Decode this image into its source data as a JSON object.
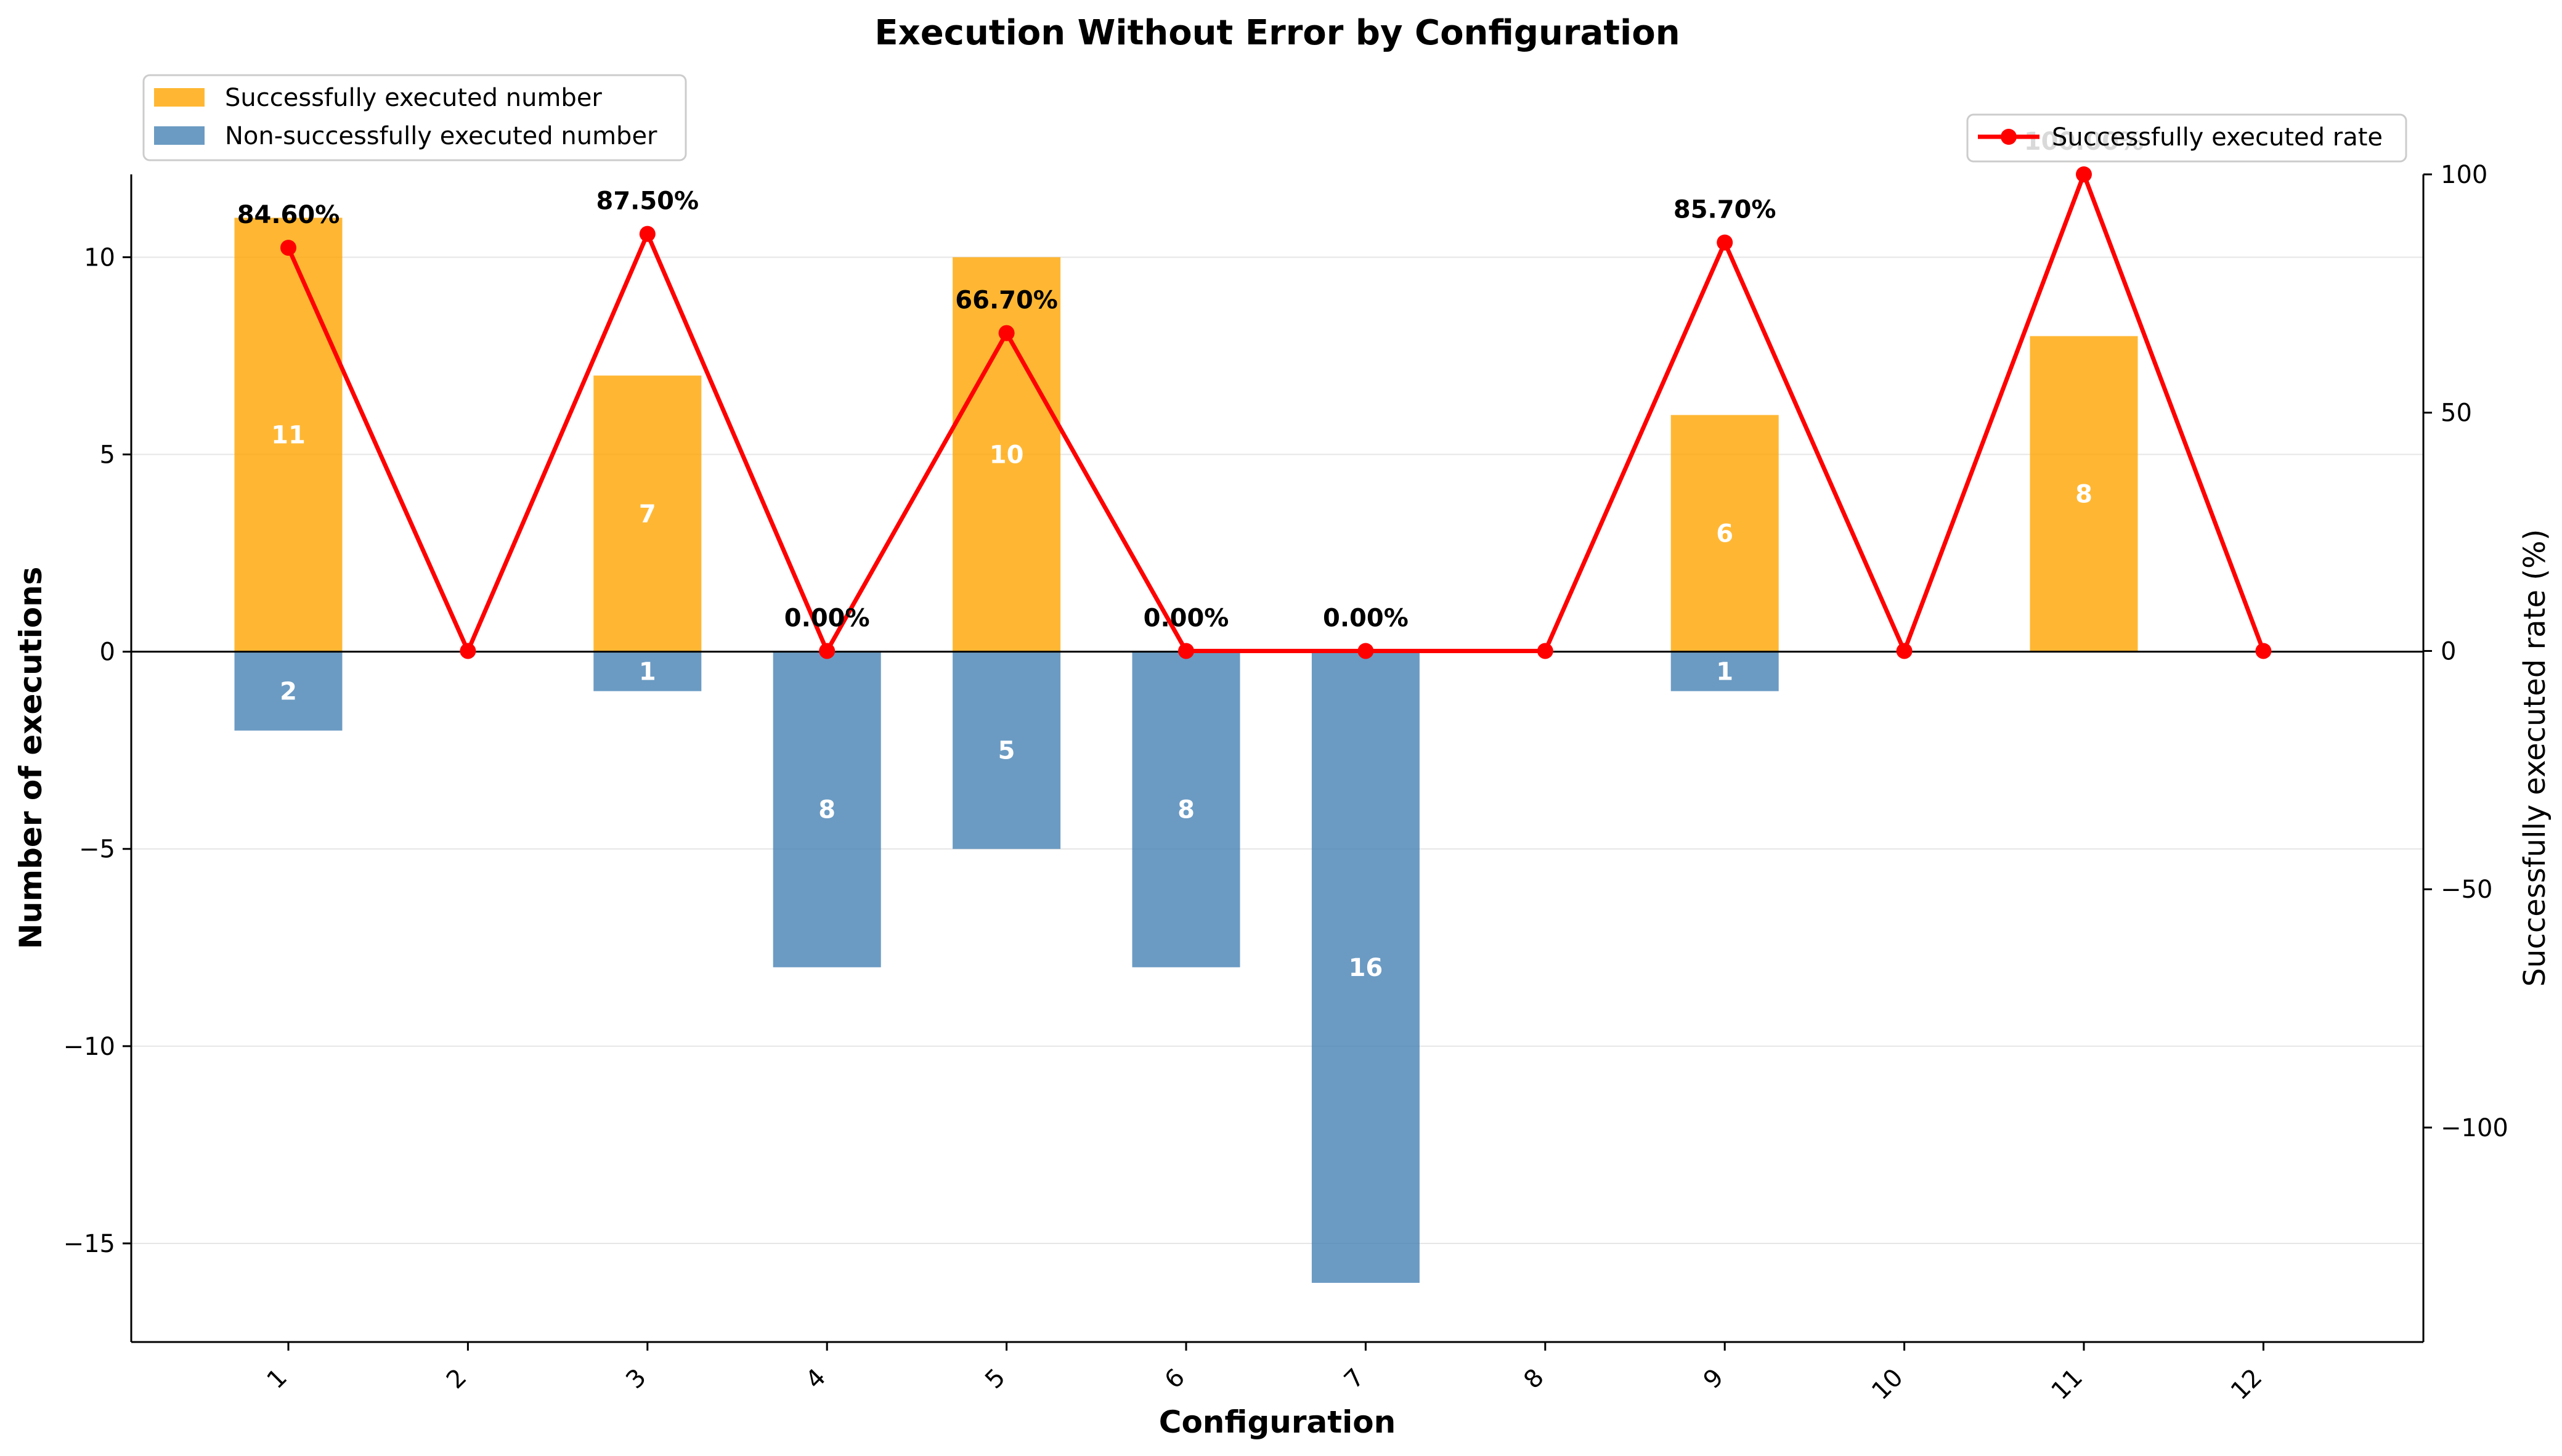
{
  "chart_data": {
    "type": "bar",
    "title": "Execution Without Error by Configuration",
    "xlabel": "Configuration",
    "ylabel": "Number of executions",
    "y2label": "Successfully executed rate (%)",
    "categories": [
      "1",
      "2",
      "3",
      "4",
      "5",
      "6",
      "7",
      "8",
      "9",
      "10",
      "11",
      "12"
    ],
    "series": [
      {
        "name": "Successfully executed number",
        "kind": "bar",
        "color": "#FFA500",
        "values": [
          11,
          0,
          7,
          0,
          10,
          0,
          0,
          0,
          6,
          0,
          8,
          0
        ]
      },
      {
        "name": "Non-successfully executed number",
        "kind": "bar",
        "color": "#4682B4",
        "values": [
          -2,
          0,
          -1,
          -8,
          -5,
          -8,
          -16,
          0,
          -1,
          0,
          0,
          0
        ]
      },
      {
        "name": "Successfully executed rate",
        "kind": "line",
        "axis": "right",
        "color": "#FF0000",
        "values": [
          84.6,
          0,
          87.5,
          0,
          66.7,
          0,
          0,
          0,
          85.7,
          0,
          100,
          0
        ]
      }
    ],
    "success_labels": [
      "11",
      "",
      "7",
      "",
      "10",
      "",
      "",
      "",
      "6",
      "",
      "8",
      ""
    ],
    "fail_labels": [
      "2",
      "",
      "1",
      "8",
      "5",
      "8",
      "16",
      "",
      "1",
      "",
      "",
      ""
    ],
    "rate_labels": [
      "84.60%",
      "",
      "87.50%",
      "0.00%",
      "66.70%",
      "0.00%",
      "0.00%",
      "",
      "85.70%",
      "",
      "100.00%",
      ""
    ],
    "ylim": [
      -17.5,
      12.1
    ],
    "y2lim": [
      -145,
      100
    ],
    "yticks": [
      10,
      5,
      0,
      -5,
      -10,
      -15
    ],
    "ytick_labels": [
      "10",
      "5",
      "0",
      "−5",
      "−10",
      "−15"
    ],
    "y2ticks": [
      100,
      50,
      0,
      -50,
      -100
    ],
    "y2tick_labels": [
      "100",
      "50",
      "0",
      "−50",
      "−100"
    ],
    "grid": "horizontal",
    "legend_bars_position": "top-left",
    "legend_line_position": "top-right"
  }
}
